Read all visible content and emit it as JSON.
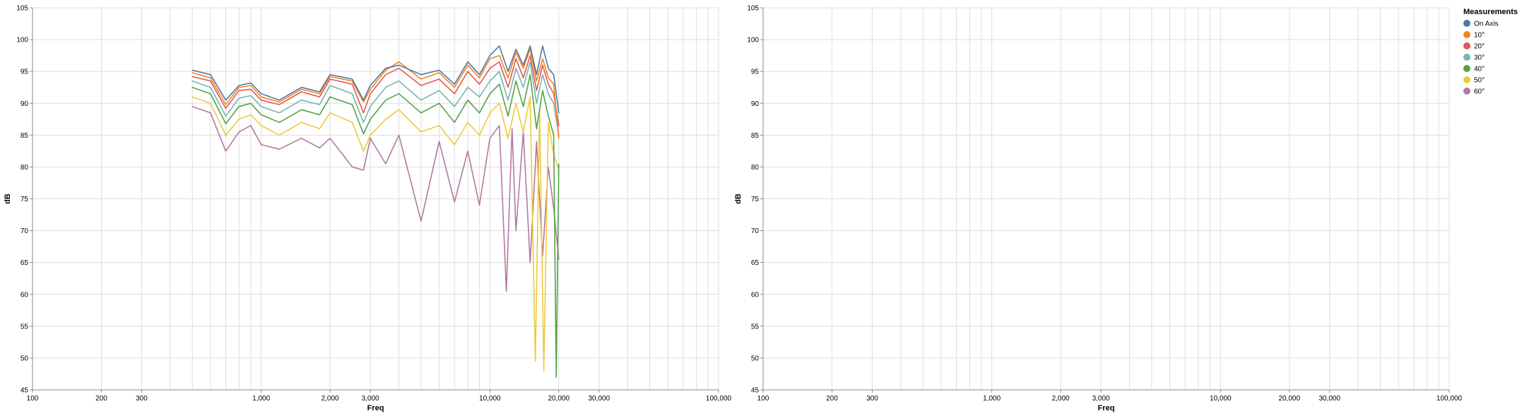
{
  "chart_data": [
    {
      "type": "line",
      "xlabel": "Freq",
      "ylabel": "dB",
      "x_scale": "log",
      "xlim": [
        100,
        100000
      ],
      "ylim": [
        45,
        105
      ],
      "x_ticks": [
        100,
        200,
        300,
        1000,
        2000,
        3000,
        10000,
        20000,
        30000,
        100000
      ],
      "x_tick_labels": [
        "100",
        "200",
        "300",
        "1,000",
        "2,000",
        "3,000",
        "10,000",
        "20,000",
        "30,000",
        "100,000"
      ],
      "y_ticks": [
        45,
        50,
        55,
        60,
        65,
        70,
        75,
        80,
        85,
        90,
        95,
        100,
        105
      ],
      "grid": true,
      "series": [
        {
          "name": "On Axis",
          "color": "#4c78a8",
          "x": [
            500,
            600,
            700,
            800,
            900,
            1000,
            1200,
            1500,
            1800,
            2000,
            2500,
            2800,
            3000,
            3500,
            4000,
            5000,
            6000,
            7000,
            8000,
            9000,
            10000,
            11000,
            12000,
            13000,
            14000,
            15000,
            16000,
            17000,
            18000,
            19000,
            20000
          ],
          "y": [
            95.2,
            94.5,
            90.5,
            92.8,
            93.2,
            91.5,
            90.5,
            92.5,
            91.8,
            94.5,
            93.8,
            90.5,
            92.8,
            95.5,
            96,
            94.5,
            95.2,
            93,
            96.5,
            94.5,
            97.5,
            99,
            95,
            98.5,
            96,
            99,
            94.5,
            99,
            95.5,
            94.5,
            88.5
          ]
        },
        {
          "name": "10°",
          "color": "#f58518",
          "x": [
            500,
            600,
            700,
            800,
            900,
            1000,
            1200,
            1500,
            1800,
            2000,
            2500,
            2800,
            3000,
            3500,
            4000,
            5000,
            6000,
            7000,
            8000,
            9000,
            10000,
            11000,
            12000,
            13000,
            14000,
            15000,
            16000,
            17000,
            18000,
            19000,
            20000
          ],
          "y": [
            94.8,
            94,
            89.8,
            92.5,
            92.8,
            91,
            90.2,
            92.2,
            91.5,
            94.2,
            93.5,
            90.2,
            92.2,
            95.2,
            96.5,
            93.8,
            94.8,
            92.5,
            96,
            94,
            97,
            97.5,
            94,
            98,
            95.5,
            98.5,
            93.5,
            97,
            94,
            93,
            84.5
          ]
        },
        {
          "name": "20°",
          "color": "#e45756",
          "x": [
            500,
            600,
            700,
            800,
            900,
            1000,
            1200,
            1500,
            1800,
            2000,
            2500,
            2800,
            3000,
            3500,
            4000,
            5000,
            6000,
            7000,
            8000,
            9000,
            10000,
            11000,
            12000,
            13000,
            14000,
            15000,
            16000,
            17000,
            18000,
            19000,
            20000
          ],
          "y": [
            94.2,
            93.5,
            89.2,
            92,
            92.2,
            90.5,
            89.8,
            91.8,
            91,
            93.8,
            93,
            88.5,
            91.5,
            94.5,
            95.5,
            92.8,
            93.8,
            91.5,
            95,
            93,
            95.5,
            96.5,
            92.5,
            97,
            94,
            97.5,
            92,
            96,
            93,
            91.5,
            86.5
          ]
        },
        {
          "name": "30°",
          "color": "#72b7b2",
          "x": [
            500,
            600,
            700,
            800,
            900,
            1000,
            1200,
            1500,
            1800,
            2000,
            2500,
            2800,
            3000,
            3500,
            4000,
            5000,
            6000,
            7000,
            8000,
            9000,
            10000,
            11000,
            12000,
            13000,
            14000,
            15000,
            16000,
            17000,
            18000,
            19000,
            20000
          ],
          "y": [
            93.5,
            92.5,
            88,
            90.8,
            91.2,
            89.5,
            88.5,
            90.5,
            89.8,
            92.8,
            91.5,
            87,
            89.5,
            92.5,
            93.5,
            90.5,
            92,
            89.5,
            92.5,
            91,
            93.5,
            95,
            90.5,
            95.5,
            92.5,
            96.5,
            90,
            94.5,
            91.5,
            90,
            85
          ]
        },
        {
          "name": "40°",
          "color": "#54a24b",
          "x": [
            500,
            600,
            700,
            800,
            900,
            1000,
            1200,
            1500,
            1800,
            2000,
            2500,
            2800,
            3000,
            3500,
            4000,
            5000,
            6000,
            7000,
            8000,
            9000,
            10000,
            11000,
            12000,
            13000,
            14000,
            15000,
            16000,
            17000,
            18000,
            19000,
            19500,
            20000
          ],
          "y": [
            92.5,
            91.5,
            86.8,
            89.5,
            90,
            88.2,
            87,
            89,
            88.2,
            91,
            89.8,
            85.2,
            87.5,
            90.5,
            91.5,
            88.5,
            90,
            87,
            90.5,
            88.5,
            91.5,
            93,
            88,
            93.5,
            89.5,
            94.5,
            86,
            92,
            88,
            85,
            47,
            80.5
          ]
        },
        {
          "name": "50°",
          "color": "#eeca3b",
          "x": [
            500,
            600,
            700,
            800,
            900,
            1000,
            1200,
            1500,
            1800,
            2000,
            2500,
            2800,
            3000,
            3500,
            4000,
            5000,
            6000,
            7000,
            8000,
            9000,
            10000,
            11000,
            12000,
            13000,
            14000,
            15000,
            15800,
            16500,
            17200,
            18000,
            19000,
            20000
          ],
          "y": [
            91,
            90,
            85,
            87.5,
            88.2,
            86.5,
            85,
            87,
            86,
            88.5,
            87,
            82.5,
            85,
            87.5,
            89,
            85.5,
            86.5,
            83.5,
            87,
            85,
            88.5,
            90,
            84.5,
            90,
            85.5,
            91,
            49.5,
            89,
            48,
            87,
            82,
            79.5
          ]
        },
        {
          "name": "60°",
          "color": "#b279a2",
          "x": [
            500,
            600,
            700,
            800,
            900,
            1000,
            1200,
            1500,
            1800,
            2000,
            2500,
            2800,
            3000,
            3500,
            4000,
            5000,
            6000,
            7000,
            8000,
            9000,
            10000,
            11000,
            11800,
            12500,
            13000,
            14000,
            15000,
            16000,
            17000,
            18000,
            19000,
            20000
          ],
          "y": [
            89.5,
            88.5,
            82.5,
            85.5,
            86.5,
            83.5,
            82.8,
            84.5,
            83,
            84.5,
            80,
            79.5,
            84.5,
            80.5,
            85,
            71.5,
            84,
            74.5,
            82.5,
            74,
            84.5,
            86.5,
            60.5,
            86,
            70,
            85.5,
            65,
            84,
            66,
            80,
            73.5,
            65.5
          ]
        }
      ]
    },
    {
      "type": "line",
      "xlabel": "Freq",
      "ylabel": "dB",
      "x_scale": "log",
      "xlim": [
        100,
        100000
      ],
      "ylim": [
        45,
        105
      ],
      "x_ticks": [
        100,
        200,
        300,
        1000,
        2000,
        3000,
        10000,
        20000,
        30000,
        100000
      ],
      "x_tick_labels": [
        "100",
        "200",
        "300",
        "1,000",
        "2,000",
        "3,000",
        "10,000",
        "20,000",
        "30,000",
        "100,000"
      ],
      "y_ticks": [
        45,
        50,
        55,
        60,
        65,
        70,
        75,
        80,
        85,
        90,
        95,
        100,
        105
      ],
      "grid": true,
      "series": []
    }
  ],
  "legend": {
    "title": "Measurements",
    "position": "top-right",
    "items": [
      {
        "label": "On Axis",
        "color": "#4c78a8"
      },
      {
        "label": "10°",
        "color": "#f58518"
      },
      {
        "label": "20°",
        "color": "#e45756"
      },
      {
        "label": "30°",
        "color": "#72b7b2"
      },
      {
        "label": "40°",
        "color": "#54a24b"
      },
      {
        "label": "50°",
        "color": "#eeca3b"
      },
      {
        "label": "60°",
        "color": "#b279a2"
      }
    ]
  }
}
